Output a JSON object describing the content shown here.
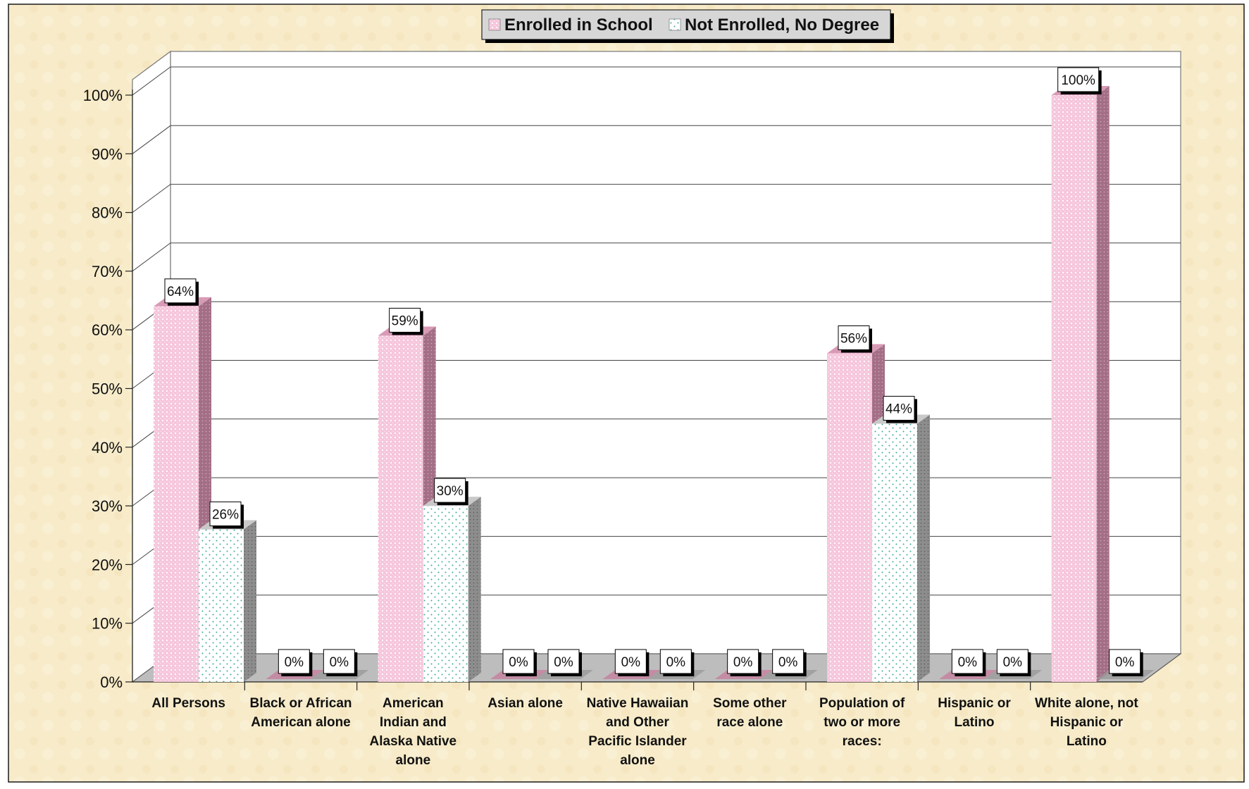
{
  "chart_data": {
    "type": "bar",
    "title": "",
    "xlabel": "",
    "ylabel": "",
    "ylim": [
      0,
      100
    ],
    "yticks": [
      "0%",
      "10%",
      "20%",
      "30%",
      "40%",
      "50%",
      "60%",
      "70%",
      "80%",
      "90%",
      "100%"
    ],
    "legend_position": "top-center",
    "grid": true,
    "categories": [
      [
        "All Persons"
      ],
      [
        "Black or African",
        "American alone"
      ],
      [
        "American",
        "Indian and",
        "Alaska Native",
        "alone"
      ],
      [
        "Asian alone"
      ],
      [
        "Native Hawaiian",
        "and Other",
        "Pacific Islander",
        "alone"
      ],
      [
        "Some other",
        "race alone"
      ],
      [
        "Population of",
        "two or more",
        "races:"
      ],
      [
        "Hispanic or",
        "Latino"
      ],
      [
        "White alone, not",
        "Hispanic or",
        "Latino"
      ]
    ],
    "series": [
      {
        "name": "Enrolled in School",
        "values": [
          64,
          0,
          59,
          0,
          0,
          0,
          56,
          0,
          100
        ],
        "labels": [
          "64%",
          "0%",
          "59%",
          "0%",
          "0%",
          "0%",
          "56%",
          "0%",
          "100%"
        ],
        "color": "#f6c6dc"
      },
      {
        "name": "Not Enrolled, No Degree",
        "values": [
          26,
          0,
          30,
          0,
          0,
          0,
          44,
          0,
          0
        ],
        "labels": [
          "26%",
          "0%",
          "30%",
          "0%",
          "0%",
          "0%",
          "44%",
          "0%",
          "0%"
        ],
        "color": "#ffffff"
      }
    ]
  },
  "colors": {
    "background": "#f7ebc9",
    "plot": "#ffffff",
    "floor": "#bdbdbd",
    "enrolled": "#f6c6dc",
    "enrolled_side": "#a36f86",
    "not_enrolled_dots": "#3aa898",
    "not_enrolled_side": "#8a8a8a"
  }
}
